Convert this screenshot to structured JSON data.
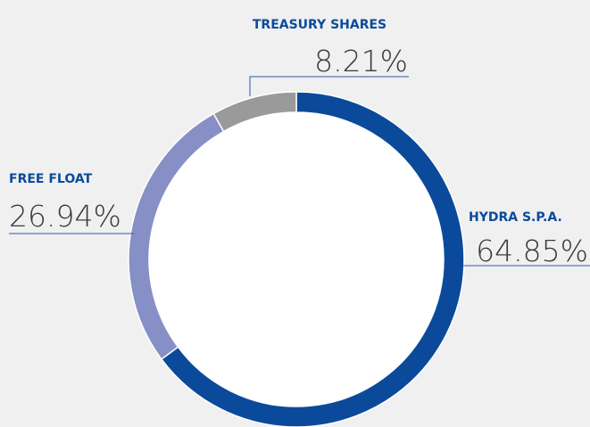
{
  "chart_data": {
    "type": "donut",
    "categories": [
      "HYDRA S.P.A.",
      "FREE FLOAT",
      "TREASURY SHARES"
    ],
    "values": [
      64.85,
      26.94,
      8.21
    ],
    "value_labels": [
      "64.85%",
      "26.94%",
      "8.21%"
    ],
    "colors": [
      "#0b4a9b",
      "#8690c6",
      "#9a9a9a"
    ]
  }
}
